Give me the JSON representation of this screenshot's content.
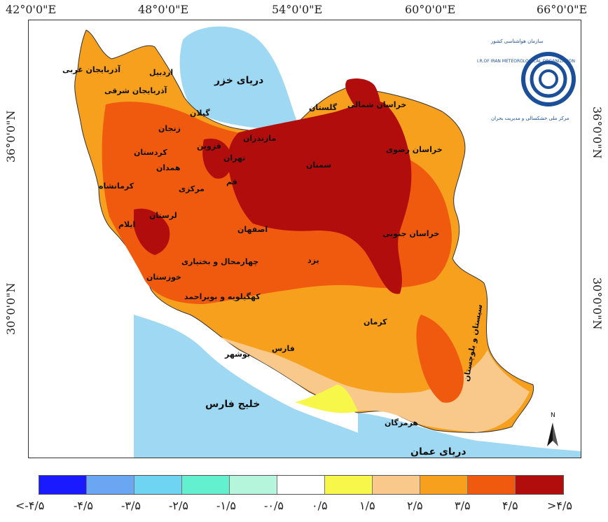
{
  "coords": {
    "top": [
      "42°0'0\"E",
      "48°0'0\"E",
      "54°0'0\"E",
      "60°0'0\"E",
      "66°0'0\"E"
    ],
    "left": [
      "36°0'0\"N",
      "30°0'0\"N"
    ],
    "right": [
      "36°0'0\"N",
      "30°0'0\"N"
    ]
  },
  "water_bodies": {
    "caspian": "دریای خزر",
    "persian_gulf": "خلیج فارس",
    "oman_sea": "دریای عمان"
  },
  "provinces": {
    "west_azarbaijan": "آذربایجان غربی",
    "east_azarbaijan": "آذربایجان شرقی",
    "ardabil": "اردبیل",
    "zanjan": "زنجان",
    "gilan": "گیلان",
    "golestan": "گلستان",
    "north_khorasan": "خراسان شمالی",
    "razavi_khorasan": "خراسان رضوی",
    "south_khorasan": "خراسان جنوبی",
    "mazandaran": "مازندران",
    "qazvin": "قزوین",
    "tehran": "تهران",
    "semnan": "سمنان",
    "kurdistan": "کردستان",
    "hamadan": "همدان",
    "kermanshah": "کرمانشاه",
    "markazi": "مرکزی",
    "qom": "قم",
    "ilam": "ایلام",
    "lorestan": "لرستان",
    "isfahan": "اصفهان",
    "khuzestan": "خوزستان",
    "chaharmahal": "چهارمحال و بختیاری",
    "kohgiluyeh": "کهگیلویه و بویراحمد",
    "yazd": "یزد",
    "kerman": "کرمان",
    "fars": "فارس",
    "bushehr": "بوشهر",
    "hormozgan": "هرمزگان",
    "sistan": "سیستان و بلوچستان"
  },
  "logo": {
    "text_top": "سازمان هواشناسی کشور",
    "text_en": "I.R.OF IRAN METEOROLOGICAL ORGANIZATION",
    "text_bottom": "مرکز ملی خشکسالی و مدیریت بحران"
  },
  "north_arrow": "N",
  "legend": {
    "colors": [
      "#1a1aff",
      "#6aa6f2",
      "#6fd3f2",
      "#63f0cf",
      "#b5f5dc",
      "#ffffff",
      "#f7f74a",
      "#f8c98a",
      "#f6a01e",
      "#f05a0f",
      "#b20d0d"
    ],
    "labels": [
      "<-۴/۵",
      "-۴/۵",
      "-۳/۵",
      "-۲/۵",
      "-۱/۵",
      "-۰/۵",
      "۰/۵",
      "۱/۵",
      "۲/۵",
      "۳/۵",
      "۴/۵",
      ">۴/۵"
    ]
  }
}
